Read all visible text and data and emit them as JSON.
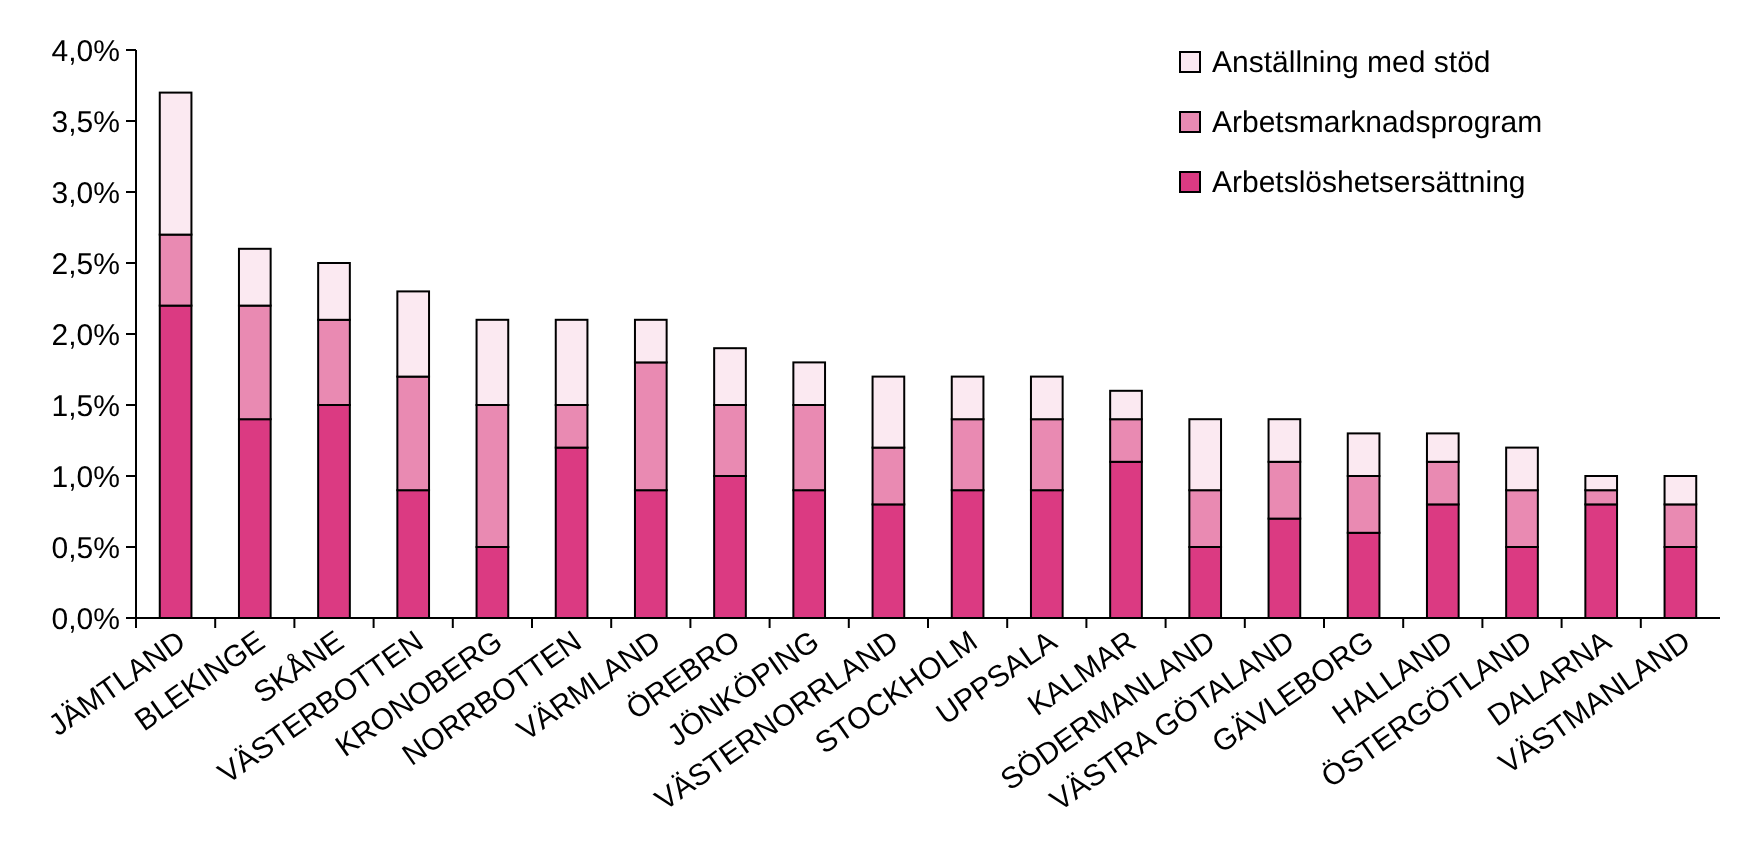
{
  "chart_data": {
    "type": "bar",
    "stacked": true,
    "legend": "top right",
    "grid": false,
    "categories": [
      "JÄMTLAND",
      "BLEKINGE",
      "SKÅNE",
      "VÄSTERBOTTEN",
      "KRONOBERG",
      "NORRBOTTEN",
      "VÄRMLAND",
      "ÖREBRO",
      "JÖNKÖPING",
      "VÄSTERNORRLAND",
      "STOCKHOLM",
      "UPPSALA",
      "KALMAR",
      "SÖDERMANLAND",
      "VÄSTRA GÖTALAND",
      "GÄVLEBORG",
      "HALLAND",
      "ÖSTERGÖTLAND",
      "DALARNA",
      "VÄSTMANLAND"
    ],
    "series": [
      {
        "name": "Arbetslöshetsersättning",
        "color": "#db3a82",
        "values": [
          2.2,
          1.4,
          1.5,
          0.9,
          0.5,
          1.2,
          0.9,
          1.0,
          0.9,
          0.8,
          0.9,
          0.9,
          1.1,
          0.5,
          0.7,
          0.6,
          0.8,
          0.5,
          0.8,
          0.5
        ]
      },
      {
        "name": "Arbetsmarknadsprogram",
        "color": "#e98ab2",
        "values": [
          0.5,
          0.8,
          0.6,
          0.8,
          1.0,
          0.3,
          0.9,
          0.5,
          0.6,
          0.4,
          0.5,
          0.5,
          0.3,
          0.4,
          0.4,
          0.4,
          0.3,
          0.4,
          0.1,
          0.3
        ]
      },
      {
        "name": "Anställning med stöd",
        "color": "#fbe9f1",
        "values": [
          1.0,
          0.4,
          0.4,
          0.6,
          0.6,
          0.6,
          0.3,
          0.4,
          0.3,
          0.5,
          0.3,
          0.3,
          0.2,
          0.5,
          0.3,
          0.3,
          0.2,
          0.3,
          0.1,
          0.2
        ]
      }
    ],
    "ylim": [
      0,
      4
    ],
    "yticks": [
      {
        "value": 0,
        "label": "0,0%"
      },
      {
        "value": 0.5,
        "label": "0,5%"
      },
      {
        "value": 1,
        "label": "1,0%"
      },
      {
        "value": 1.5,
        "label": "1,5%"
      },
      {
        "value": 2,
        "label": "2,0%"
      },
      {
        "value": 2.5,
        "label": "2,5%"
      },
      {
        "value": 3,
        "label": "3,0%"
      },
      {
        "value": 3.5,
        "label": "3,5%"
      },
      {
        "value": 4,
        "label": "4,0%"
      }
    ]
  }
}
